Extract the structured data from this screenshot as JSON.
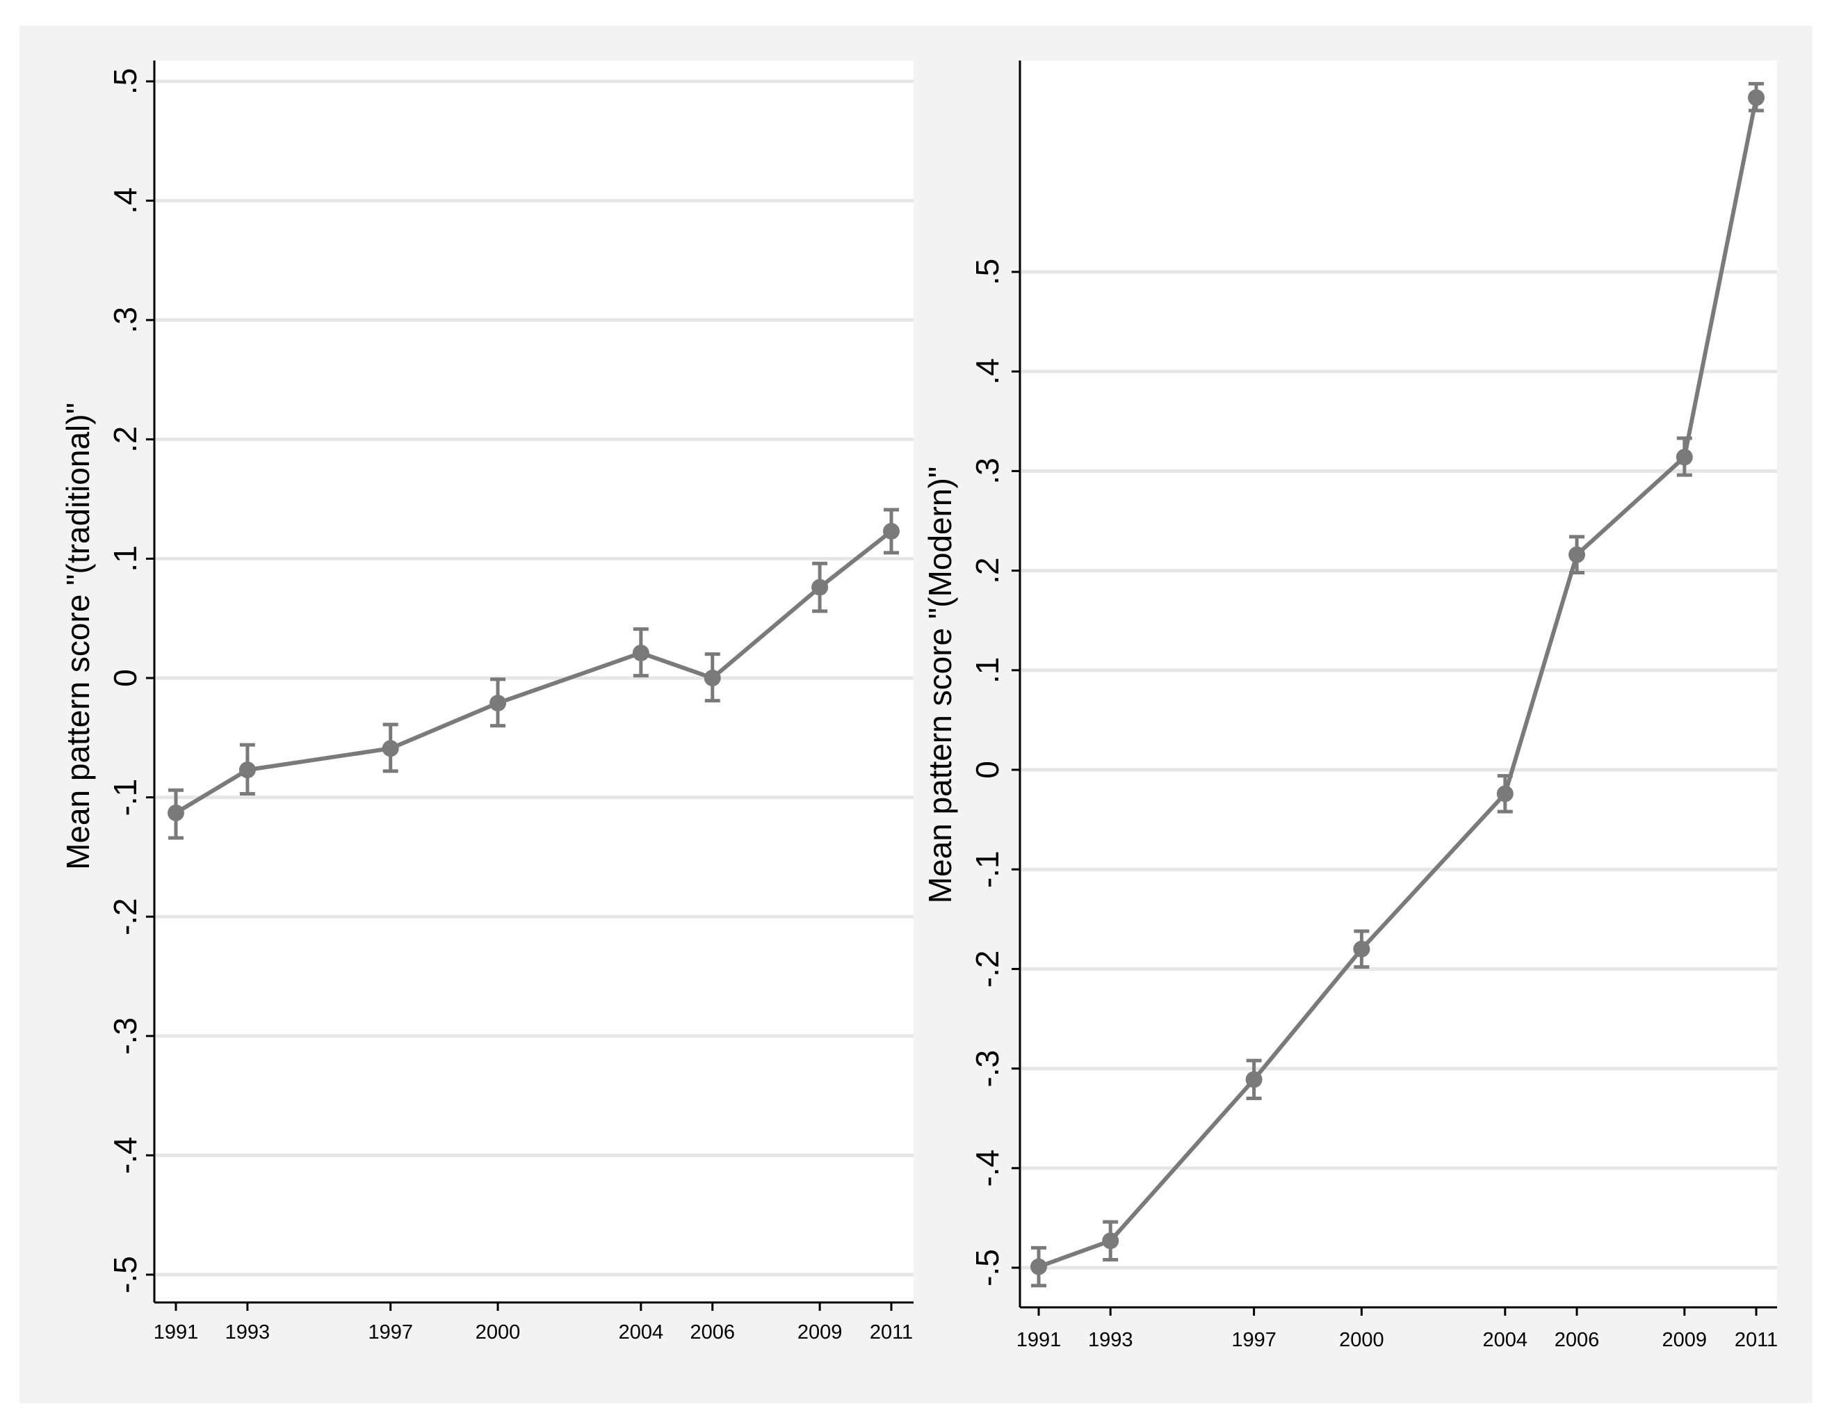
{
  "chart_data": [
    {
      "type": "line",
      "ylabel": "Mean pattern score \"(traditional)\"",
      "xlabel": "",
      "categories": [
        "1991",
        "1993",
        "1997",
        "2000",
        "2004",
        "2006",
        "2009",
        "2011"
      ],
      "x": [
        1991,
        1993,
        1997,
        2000,
        2004,
        2006,
        2009,
        2011
      ],
      "values": [
        -0.113,
        -0.077,
        -0.059,
        -0.021,
        0.021,
        0.0,
        0.076,
        0.123
      ],
      "ci_low": [
        -0.134,
        -0.097,
        -0.078,
        -0.04,
        0.002,
        -0.019,
        0.056,
        0.105
      ],
      "ci_high": [
        -0.094,
        -0.056,
        -0.039,
        -0.001,
        0.041,
        0.02,
        0.096,
        0.141
      ],
      "ylim": [
        -0.5,
        0.5
      ],
      "yticks": [
        -0.5,
        -0.4,
        -0.3,
        -0.2,
        -0.1,
        0,
        0.1,
        0.2,
        0.3,
        0.4,
        0.5
      ],
      "ytick_labels": [
        "-.5",
        "-.4",
        "-.3",
        "-.2",
        "-.1",
        "0",
        ".1",
        ".2",
        ".3",
        ".4",
        ".5"
      ],
      "grid": true,
      "line_color": "#7a7a7a"
    },
    {
      "type": "line",
      "ylabel": "Mean pattern score \"(Modern)\"",
      "xlabel": "",
      "categories": [
        "1991",
        "1993",
        "1997",
        "2000",
        "2004",
        "2006",
        "2009",
        "2011"
      ],
      "x": [
        1991,
        1993,
        1997,
        2000,
        2004,
        2006,
        2009,
        2011
      ],
      "values": [
        -0.499,
        -0.473,
        -0.311,
        -0.18,
        -0.024,
        0.216,
        0.314,
        0.675
      ],
      "ci_low": [
        -0.518,
        -0.492,
        -0.33,
        -0.198,
        -0.042,
        0.198,
        0.296,
        0.662
      ],
      "ci_high": [
        -0.48,
        -0.454,
        -0.292,
        -0.162,
        -0.006,
        0.234,
        0.333,
        0.689
      ],
      "ylim": [
        -0.5,
        0.675
      ],
      "yticks": [
        -0.5,
        -0.4,
        -0.3,
        -0.2,
        -0.1,
        0,
        0.1,
        0.2,
        0.3,
        0.4,
        0.5
      ],
      "ytick_labels": [
        "-.5",
        "-.4",
        "-.3",
        "-.2",
        "-.1",
        "0",
        ".1",
        ".2",
        ".3",
        ".4",
        ".5"
      ],
      "grid": true,
      "line_color": "#7a7a7a"
    }
  ]
}
